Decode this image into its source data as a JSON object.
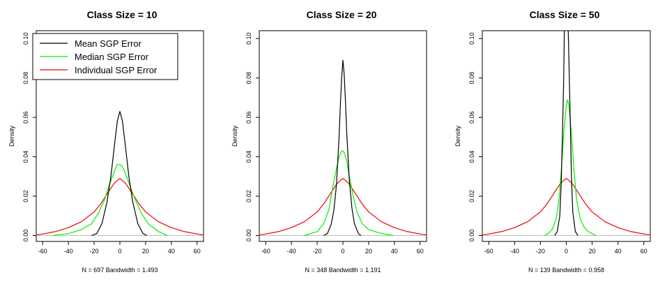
{
  "colors": {
    "mean": "#000000",
    "median": "#00ee00",
    "individual": "#ee0000",
    "baseline": "#bebebe"
  },
  "chart_data": [
    {
      "type": "line",
      "title": "Class Size = 10",
      "xlabel": "N = 697   Bandwidth = 1.493",
      "ylabel": "Density",
      "xlim": [
        -65,
        65
      ],
      "ylim": [
        -0.003,
        0.104
      ],
      "xticks": [
        -60,
        -40,
        -20,
        0,
        20,
        40,
        60
      ],
      "yticks": [
        0.0,
        0.02,
        0.04,
        0.06,
        0.08,
        0.1
      ],
      "ytick_labels": [
        "0.00",
        "0.02",
        "0.04",
        "0.06",
        "0.08",
        "0.10"
      ],
      "legend": {
        "position": "top-left",
        "entries": [
          "Mean SGP Error",
          "Median SGP Error",
          "Individual SGP Error"
        ]
      },
      "series": [
        {
          "name": "Mean SGP Error",
          "color": "#000000",
          "x": [
            -22,
            -18,
            -14,
            -10,
            -7,
            -4,
            -2,
            0,
            2,
            4,
            7,
            10,
            14,
            18,
            21
          ],
          "y": [
            0,
            0.001,
            0.006,
            0.017,
            0.03,
            0.047,
            0.058,
            0.063,
            0.058,
            0.047,
            0.03,
            0.017,
            0.006,
            0.001,
            0
          ]
        },
        {
          "name": "Median SGP Error",
          "color": "#00ee00",
          "x": [
            -52,
            -40,
            -30,
            -22,
            -17,
            -12,
            -8,
            -4,
            -2,
            0,
            2,
            4,
            8,
            12,
            17,
            22,
            30,
            37
          ],
          "y": [
            0,
            0.001,
            0.003,
            0.006,
            0.011,
            0.018,
            0.026,
            0.033,
            0.036,
            0.036,
            0.035,
            0.032,
            0.025,
            0.018,
            0.011,
            0.006,
            0.002,
            0
          ]
        },
        {
          "name": "Individual SGP Error",
          "color": "#ee0000",
          "x": [
            -65,
            -60,
            -50,
            -40,
            -30,
            -20,
            -15,
            -10,
            -5,
            -2,
            0,
            2,
            5,
            10,
            15,
            20,
            30,
            40,
            50,
            60,
            65
          ],
          "y": [
            0.0003,
            0.0008,
            0.002,
            0.004,
            0.007,
            0.012,
            0.016,
            0.021,
            0.026,
            0.028,
            0.029,
            0.028,
            0.026,
            0.021,
            0.016,
            0.012,
            0.007,
            0.004,
            0.002,
            0.0008,
            0.0003
          ]
        }
      ]
    },
    {
      "type": "line",
      "title": "Class Size = 20",
      "xlabel": "N = 348   Bandwidth = 1.191",
      "ylabel": "Density",
      "xlim": [
        -65,
        65
      ],
      "ylim": [
        -0.003,
        0.104
      ],
      "xticks": [
        -60,
        -40,
        -20,
        0,
        20,
        40,
        60
      ],
      "yticks": [
        0.0,
        0.02,
        0.04,
        0.06,
        0.08,
        0.1
      ],
      "ytick_labels": [
        "0.00",
        "0.02",
        "0.04",
        "0.06",
        "0.08",
        "0.10"
      ],
      "series": [
        {
          "name": "Mean SGP Error",
          "color": "#000000",
          "x": [
            -15,
            -12,
            -9,
            -7,
            -5,
            -3,
            -2,
            -1,
            0,
            1,
            2,
            3,
            5,
            7,
            9,
            12,
            14
          ],
          "y": [
            0,
            0.001,
            0.006,
            0.013,
            0.026,
            0.05,
            0.066,
            0.08,
            0.089,
            0.082,
            0.068,
            0.052,
            0.028,
            0.014,
            0.006,
            0.001,
            0
          ]
        },
        {
          "name": "Median SGP Error",
          "color": "#00ee00",
          "x": [
            -30,
            -25,
            -20,
            -15,
            -11,
            -8,
            -5,
            -3,
            -1,
            0,
            1,
            3,
            5,
            8,
            11,
            15,
            20,
            25,
            30,
            35,
            39
          ],
          "y": [
            0,
            0.001,
            0.002,
            0.006,
            0.013,
            0.024,
            0.034,
            0.04,
            0.043,
            0.043,
            0.042,
            0.038,
            0.03,
            0.02,
            0.012,
            0.006,
            0.003,
            0.002,
            0.001,
            0.0005,
            0
          ]
        },
        {
          "name": "Individual SGP Error",
          "color": "#ee0000",
          "x": [
            -65,
            -60,
            -50,
            -40,
            -30,
            -20,
            -15,
            -10,
            -5,
            -2,
            0,
            2,
            5,
            10,
            15,
            20,
            30,
            40,
            50,
            60,
            65
          ],
          "y": [
            0.0003,
            0.0008,
            0.002,
            0.004,
            0.007,
            0.012,
            0.016,
            0.021,
            0.026,
            0.028,
            0.029,
            0.028,
            0.026,
            0.021,
            0.016,
            0.012,
            0.007,
            0.004,
            0.002,
            0.0008,
            0.0003
          ]
        }
      ]
    },
    {
      "type": "line",
      "title": "Class Size = 50",
      "xlabel": "N = 139   Bandwidth = 0.958",
      "ylabel": "Density",
      "xlim": [
        -65,
        65
      ],
      "ylim": [
        -0.003,
        0.104
      ],
      "xticks": [
        -60,
        -40,
        -20,
        0,
        20,
        40,
        60
      ],
      "yticks": [
        0.0,
        0.02,
        0.04,
        0.06,
        0.08,
        0.1
      ],
      "ytick_labels": [
        "0.00",
        "0.02",
        "0.04",
        "0.06",
        "0.08",
        "0.10"
      ],
      "series": [
        {
          "name": "Mean SGP Error",
          "color": "#000000",
          "x": [
            -9,
            -7,
            -5,
            -4,
            -3,
            -2,
            -1.5,
            0,
            1.5,
            2,
            3,
            4,
            5,
            7,
            9
          ],
          "y": [
            0,
            0.002,
            0.01,
            0.025,
            0.05,
            0.08,
            0.104,
            0.12,
            0.104,
            0.09,
            0.06,
            0.03,
            0.012,
            0.002,
            0
          ]
        },
        {
          "name": "Median SGP Error",
          "color": "#00ee00",
          "x": [
            -17,
            -14,
            -11,
            -8,
            -6,
            -4,
            -2,
            0,
            1,
            2,
            4,
            6,
            8,
            11,
            14,
            17,
            20,
            23
          ],
          "y": [
            0,
            0.001,
            0.003,
            0.008,
            0.016,
            0.032,
            0.052,
            0.066,
            0.069,
            0.066,
            0.052,
            0.033,
            0.018,
            0.008,
            0.004,
            0.002,
            0.001,
            0
          ]
        },
        {
          "name": "Individual SGP Error",
          "color": "#ee0000",
          "x": [
            -65,
            -60,
            -50,
            -40,
            -30,
            -20,
            -15,
            -10,
            -5,
            -2,
            0,
            2,
            5,
            10,
            15,
            20,
            30,
            40,
            50,
            60,
            65
          ],
          "y": [
            0.0003,
            0.0008,
            0.002,
            0.004,
            0.007,
            0.012,
            0.016,
            0.021,
            0.026,
            0.028,
            0.029,
            0.028,
            0.026,
            0.021,
            0.016,
            0.012,
            0.007,
            0.004,
            0.002,
            0.0008,
            0.0003
          ]
        }
      ]
    }
  ]
}
